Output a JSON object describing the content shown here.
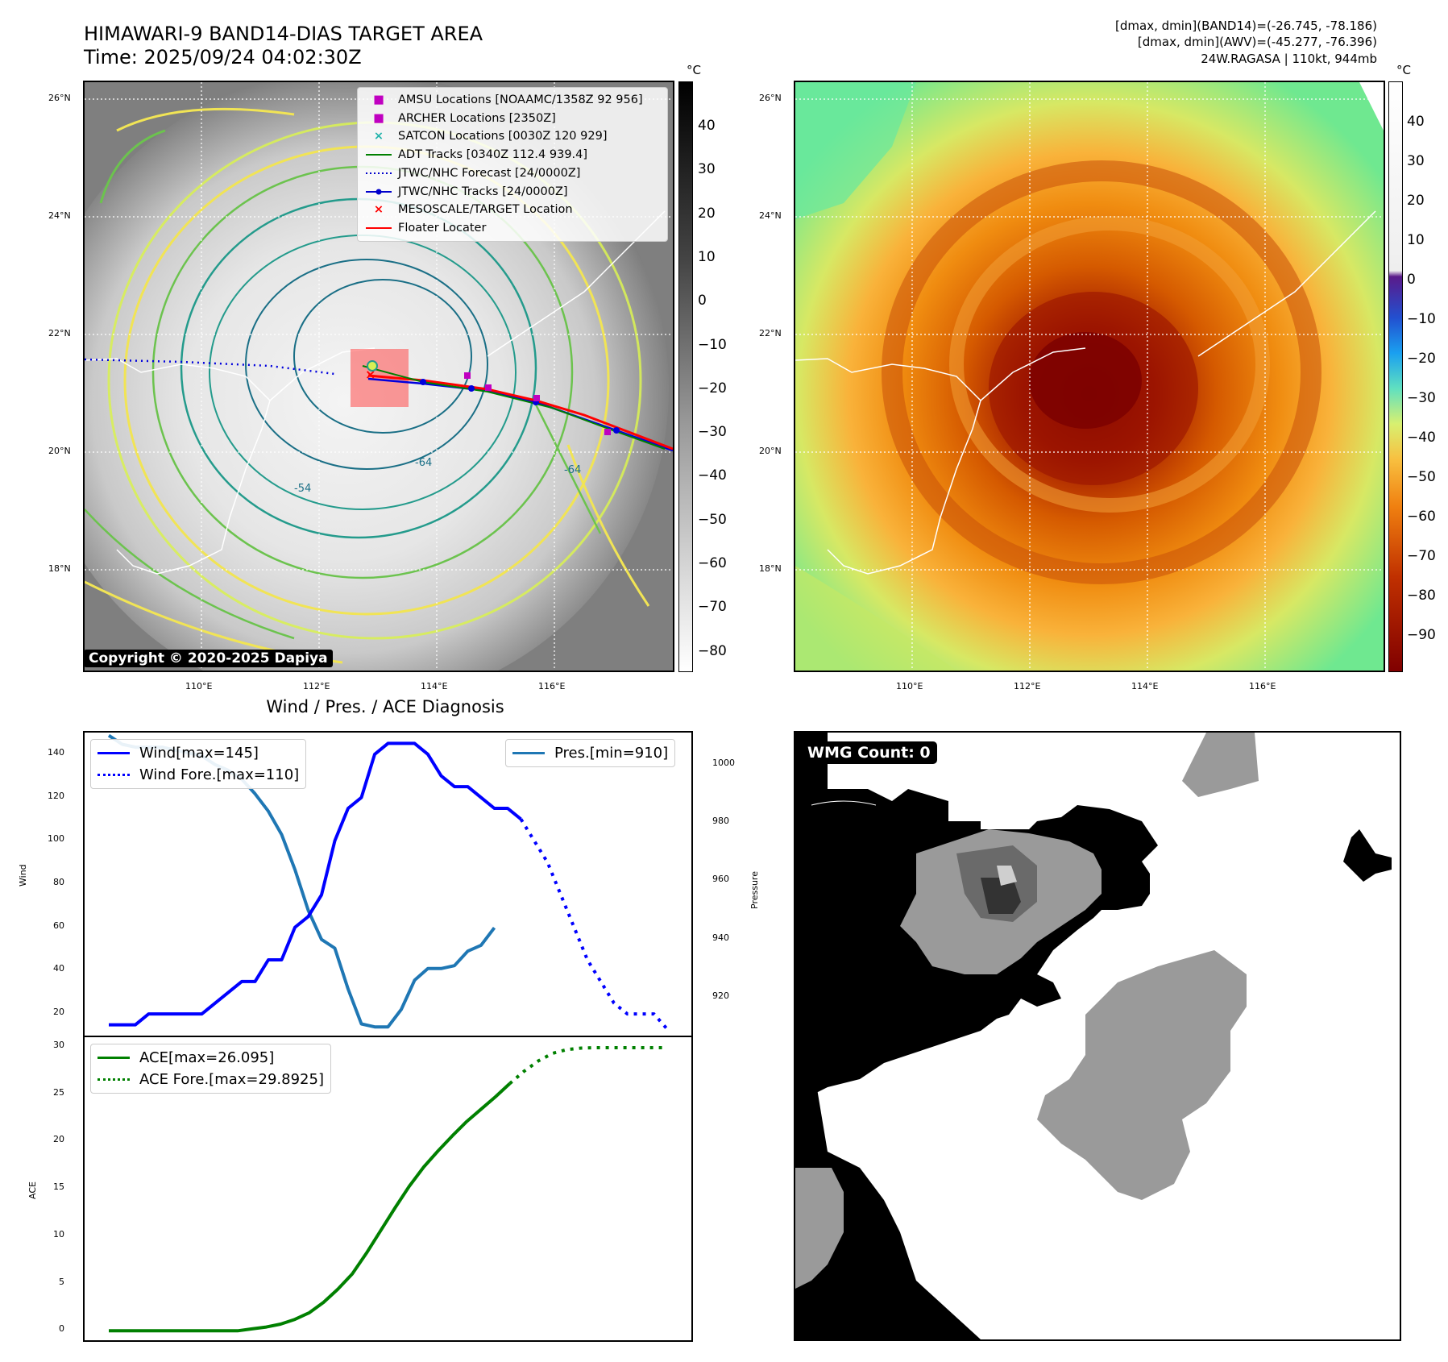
{
  "header": {
    "title_line1": "HIMAWARI-9 BAND14-DIAS TARGET AREA",
    "title_line2": "Time: 2025/09/24 04:02:30Z",
    "stats_line1": "[dmax, dmin](BAND14)=(-26.745, -78.186)",
    "stats_line2": "[dmax, dmin](AWV)=(-45.277, -76.396)",
    "stats_line3": "24W.RAGASA | 110kt, 944mb"
  },
  "map": {
    "lat_labels": [
      "26°N",
      "24°N",
      "22°N",
      "20°N",
      "18°N"
    ],
    "lon_labels": [
      "110°E",
      "112°E",
      "114°E",
      "116°E"
    ],
    "copyright": "Copyright © 2020-2025 Dapiya",
    "legend": [
      {
        "label": "AMSU Locations [NOAAMC/1358Z 92 956]",
        "marker": "square",
        "color": "#c000c0"
      },
      {
        "label": "ARCHER Locations [2350Z]",
        "marker": "square",
        "color": "#c000c0"
      },
      {
        "label": "SATCON Locations [0030Z 120 929]",
        "marker": "x",
        "color": "#20b2aa"
      },
      {
        "label": "ADT Tracks [0340Z 112.4 939.4]",
        "marker": "line",
        "color": "#008000"
      },
      {
        "label": "JTWC/NHC Forecast [24/0000Z]",
        "marker": "dotted",
        "color": "#0000cc"
      },
      {
        "label": "JTWC/NHC Tracks [24/0000Z]",
        "marker": "line-dot",
        "color": "#0000cc"
      },
      {
        "label": "MESOSCALE/TARGET Location",
        "marker": "x",
        "color": "#ff0000"
      },
      {
        "label": "Floater Locater",
        "marker": "line",
        "color": "#ff0000"
      }
    ],
    "colorbar_left": {
      "unit": "°C",
      "ticks": [
        "40",
        "30",
        "20",
        "10",
        "0",
        "−10",
        "−20",
        "−30",
        "−40",
        "−50",
        "−60",
        "−70",
        "−80"
      ]
    },
    "colorbar_right": {
      "unit": "°C",
      "ticks": [
        "40",
        "30",
        "20",
        "10",
        "0",
        "−10",
        "−20",
        "−30",
        "−40",
        "−50",
        "−60",
        "−70",
        "−80",
        "−90"
      ]
    },
    "contour_labels": [
      "-64",
      "-64",
      "-54",
      "-64",
      "-54"
    ]
  },
  "diagnosis": {
    "title": "Wind / Pres. / ACE Diagnosis",
    "wind_ylabel": "Wind",
    "pres_ylabel": "Pressure",
    "ace_ylabel": "ACE",
    "wind_ticks": [
      "140",
      "120",
      "100",
      "80",
      "60",
      "40",
      "20"
    ],
    "pres_ticks": [
      "1000",
      "980",
      "960",
      "940",
      "920"
    ],
    "ace_ticks": [
      "30",
      "25",
      "20",
      "15",
      "10",
      "5",
      "0"
    ],
    "legend_wind": "Wind[max=145]",
    "legend_wind_fore": "Wind Fore.[max=110]",
    "legend_pres": "Pres.[min=910]",
    "legend_ace": "ACE[max=26.095]",
    "legend_ace_fore": "ACE Fore.[max=29.8925]"
  },
  "wmg": {
    "label": "WMG Count: 0"
  },
  "chart_data": [
    {
      "type": "line",
      "title": "Wind / Pres. / ACE Diagnosis",
      "ylabel": "Wind",
      "ylim": [
        10,
        150
      ],
      "series": [
        {
          "name": "Wind[max=145]",
          "color": "#0000ff",
          "style": "solid",
          "values": [
            15,
            15,
            15,
            20,
            20,
            20,
            20,
            20,
            25,
            30,
            35,
            35,
            45,
            45,
            60,
            65,
            75,
            100,
            115,
            120,
            140,
            145,
            145,
            145,
            140,
            130,
            125,
            125,
            120,
            115,
            115,
            110
          ]
        },
        {
          "name": "Wind Fore.[max=110]",
          "color": "#0000ff",
          "style": "dotted",
          "values": [
            null,
            null,
            null,
            null,
            null,
            null,
            null,
            null,
            null,
            null,
            null,
            null,
            null,
            null,
            null,
            null,
            null,
            null,
            null,
            null,
            null,
            null,
            null,
            null,
            null,
            null,
            null,
            null,
            null,
            null,
            null,
            110,
            100,
            90,
            75,
            60,
            45,
            35,
            25,
            20,
            20,
            20,
            13
          ]
        }
      ]
    },
    {
      "type": "line",
      "ylabel": "Pressure",
      "ylim": [
        907,
        1011
      ],
      "series": [
        {
          "name": "Pres.[min=910]",
          "color": "#1f77b4",
          "style": "solid",
          "values": [
            1010,
            1007,
            1006,
            1006,
            1006,
            1005,
            1004,
            1003,
            1000,
            998,
            995,
            990,
            984,
            976,
            964,
            950,
            940,
            937,
            923,
            911,
            910,
            910,
            916,
            926,
            930,
            930,
            931,
            936,
            938,
            944
          ]
        }
      ]
    },
    {
      "type": "line",
      "ylabel": "ACE",
      "ylim": [
        -1,
        31
      ],
      "series": [
        {
          "name": "ACE[max=26.095]",
          "color": "#008000",
          "style": "solid",
          "values": [
            0,
            0,
            0,
            0,
            0,
            0,
            0,
            0,
            0,
            0,
            0.2,
            0.4,
            0.7,
            1.2,
            1.9,
            3.0,
            4.4,
            6.0,
            8.2,
            10.6,
            13.0,
            15.3,
            17.3,
            19.0,
            20.6,
            22.1,
            23.4,
            24.7,
            26.095
          ]
        },
        {
          "name": "ACE Fore.[max=29.8925]",
          "color": "#008000",
          "style": "dotted",
          "values": [
            null,
            null,
            null,
            null,
            null,
            null,
            null,
            null,
            null,
            null,
            null,
            null,
            null,
            null,
            null,
            null,
            null,
            null,
            null,
            null,
            null,
            null,
            null,
            null,
            null,
            null,
            null,
            null,
            26.095,
            27.4,
            28.5,
            29.3,
            29.7,
            29.85,
            29.89,
            29.8925,
            29.8925,
            29.8925,
            29.8925,
            29.8925
          ]
        }
      ]
    }
  ]
}
